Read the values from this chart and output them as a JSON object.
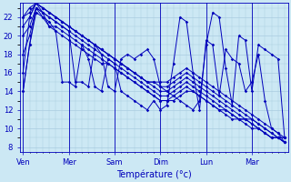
{
  "background_color": "#cce8f4",
  "grid_color": "#aacce0",
  "line_color": "#0000bb",
  "xlabel": "Température (°c)",
  "ylim": [
    7.5,
    23.5
  ],
  "ylabel_ticks": [
    8,
    10,
    12,
    14,
    16,
    18,
    20,
    22
  ],
  "n_points": 41,
  "x_tick_positions": [
    0,
    7,
    14,
    21,
    28,
    35
  ],
  "x_tick_labels": [
    "Ven",
    "Mer",
    "Sam",
    "Dim",
    "Lun",
    "Mar"
  ],
  "series": [
    [
      14.0,
      19.0,
      23.0,
      22.5,
      21.0,
      20.5,
      20.0,
      19.5,
      19.0,
      18.5,
      18.0,
      17.5,
      17.0,
      17.0,
      16.5,
      16.0,
      15.5,
      15.0,
      14.5,
      14.0,
      13.5,
      13.0,
      13.0,
      13.0,
      13.5,
      14.0,
      14.0,
      13.5,
      13.0,
      12.5,
      12.0,
      12.0,
      11.5,
      11.0,
      11.0,
      10.5,
      10.0,
      9.5,
      9.0,
      9.0,
      8.5
    ],
    [
      18.0,
      20.0,
      23.0,
      22.0,
      21.0,
      21.0,
      20.5,
      20.0,
      19.5,
      19.0,
      18.5,
      18.0,
      17.5,
      17.0,
      16.5,
      16.0,
      15.5,
      15.0,
      14.5,
      14.0,
      13.5,
      13.0,
      13.0,
      13.5,
      14.0,
      14.5,
      14.0,
      13.5,
      13.0,
      12.5,
      12.0,
      11.5,
      11.0,
      11.0,
      10.5,
      10.0,
      10.0,
      9.5,
      9.0,
      9.0,
      8.5
    ],
    [
      20.0,
      21.0,
      23.0,
      22.5,
      22.0,
      21.5,
      21.0,
      20.5,
      20.0,
      19.5,
      19.0,
      18.5,
      18.0,
      17.5,
      17.0,
      16.5,
      16.0,
      15.5,
      15.0,
      14.5,
      14.0,
      13.5,
      13.5,
      14.0,
      14.5,
      15.0,
      14.5,
      14.0,
      13.5,
      13.0,
      12.5,
      12.0,
      11.5,
      11.0,
      11.0,
      10.5,
      10.0,
      9.5,
      9.0,
      9.0,
      8.5
    ],
    [
      21.0,
      22.0,
      23.5,
      23.0,
      22.5,
      22.0,
      21.5,
      21.0,
      20.5,
      20.0,
      19.5,
      19.0,
      18.5,
      18.0,
      17.5,
      17.0,
      16.5,
      16.0,
      15.5,
      15.0,
      14.5,
      14.0,
      14.0,
      14.5,
      15.0,
      15.5,
      15.0,
      14.5,
      14.0,
      13.5,
      13.0,
      12.5,
      12.0,
      11.5,
      11.0,
      11.0,
      10.5,
      10.0,
      9.5,
      9.0,
      9.0
    ],
    [
      22.0,
      22.5,
      23.5,
      23.0,
      22.5,
      22.0,
      21.5,
      21.0,
      20.5,
      20.0,
      19.5,
      19.0,
      18.5,
      18.0,
      17.5,
      17.0,
      16.5,
      16.0,
      15.5,
      15.0,
      15.0,
      14.5,
      14.5,
      15.0,
      15.5,
      16.0,
      15.5,
      15.0,
      14.5,
      14.0,
      13.5,
      13.0,
      12.5,
      12.0,
      11.5,
      11.0,
      10.5,
      10.0,
      9.5,
      9.0,
      9.0
    ],
    [
      22.0,
      23.0,
      23.5,
      23.0,
      22.5,
      22.0,
      21.5,
      21.0,
      20.5,
      20.0,
      19.5,
      19.0,
      18.5,
      18.0,
      17.5,
      17.0,
      16.5,
      16.0,
      15.5,
      15.0,
      15.0,
      15.0,
      15.0,
      15.5,
      16.0,
      16.5,
      16.0,
      15.5,
      15.0,
      14.5,
      14.0,
      13.5,
      13.0,
      12.5,
      12.0,
      11.5,
      11.0,
      10.5,
      10.0,
      9.5,
      9.0
    ],
    [
      16.0,
      22.0,
      23.5,
      22.5,
      22.0,
      21.5,
      21.0,
      20.5,
      15.0,
      15.0,
      14.5,
      19.0,
      18.0,
      14.5,
      14.0,
      17.5,
      18.0,
      17.5,
      18.0,
      18.5,
      17.5,
      14.5,
      14.0,
      13.5,
      13.0,
      12.5,
      12.0,
      13.0,
      19.0,
      22.5,
      22.0,
      16.5,
      12.5,
      20.0,
      19.5,
      14.0,
      19.0,
      18.5,
      18.0,
      17.5,
      9.0
    ],
    [
      14.0,
      19.0,
      22.5,
      22.0,
      21.5,
      20.5,
      15.0,
      15.0,
      14.5,
      19.0,
      17.5,
      14.5,
      14.0,
      17.5,
      17.0,
      14.0,
      13.5,
      13.0,
      12.5,
      12.0,
      13.0,
      12.0,
      12.5,
      17.0,
      22.0,
      21.5,
      16.0,
      12.0,
      19.5,
      19.0,
      13.5,
      18.5,
      17.5,
      17.0,
      14.0,
      15.0,
      18.0,
      13.0,
      10.0,
      9.5,
      8.5
    ]
  ]
}
